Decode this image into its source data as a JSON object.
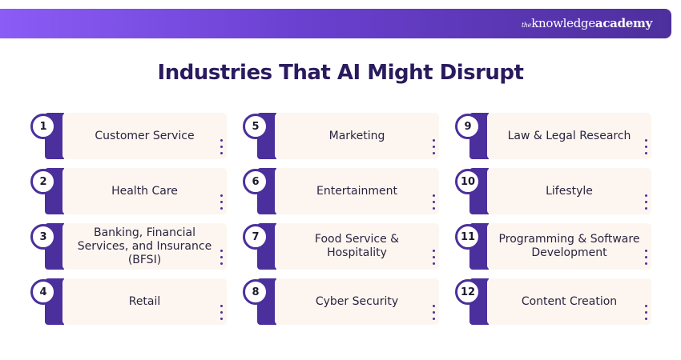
{
  "brand": {
    "logo_prefix": "the",
    "logo_main": "knowledge",
    "logo_bold": "academy"
  },
  "title": "Industries That AI Might Disrupt",
  "colors": {
    "accent": "#4b2f9c",
    "card_bg": "#fdf6f0",
    "title": "#2a1a5e"
  },
  "items": [
    {
      "number": "1",
      "label": "Customer Service"
    },
    {
      "number": "2",
      "label": "Health Care"
    },
    {
      "number": "3",
      "label": "Banking, Financial Services, and Insurance (BFSI)"
    },
    {
      "number": "4",
      "label": "Retail"
    },
    {
      "number": "5",
      "label": "Marketing"
    },
    {
      "number": "6",
      "label": "Entertainment"
    },
    {
      "number": "7",
      "label": "Food Service & Hospitality"
    },
    {
      "number": "8",
      "label": "Cyber Security"
    },
    {
      "number": "9",
      "label": "Law & Legal Research"
    },
    {
      "number": "10",
      "label": "Lifestyle"
    },
    {
      "number": "11",
      "label": "Programming & Software Development"
    },
    {
      "number": "12",
      "label": "Content Creation"
    }
  ]
}
